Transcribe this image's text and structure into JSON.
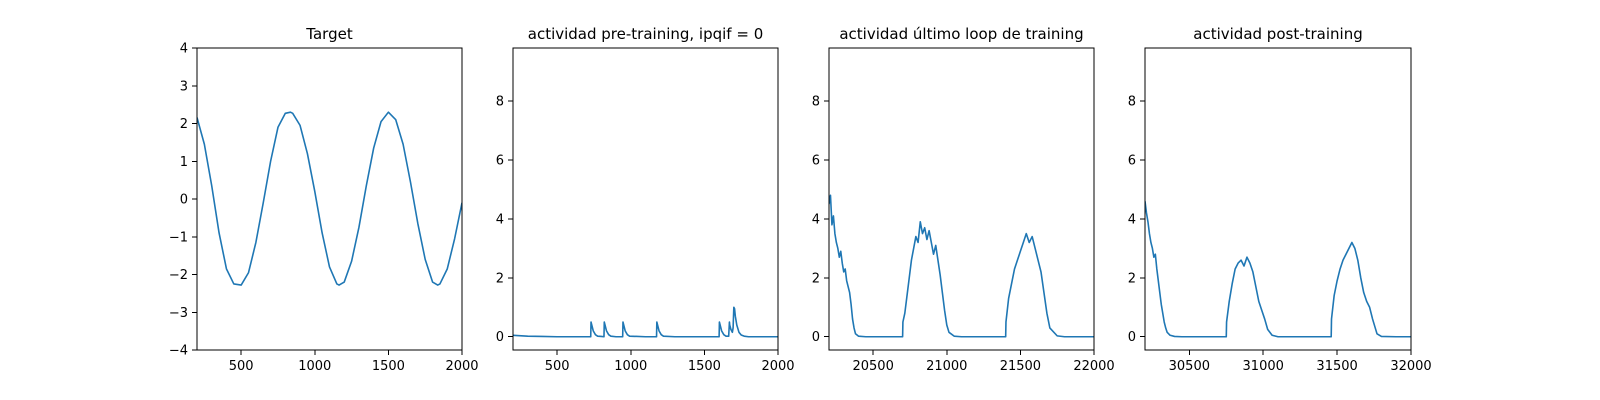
{
  "figure": {
    "line_color": "#1f77b4",
    "frame_color": "#000000",
    "background": "#ffffff"
  },
  "chart_data": [
    {
      "type": "line",
      "title": "Target",
      "xlabel": "",
      "ylabel": "",
      "xlim": [
        200,
        2000
      ],
      "ylim": [
        -4,
        4
      ],
      "xticks": [
        500,
        1000,
        1500,
        2000
      ],
      "yticks": [
        -4,
        -3,
        -2,
        -1,
        0,
        1,
        2,
        3,
        4
      ],
      "xtick_labels": [
        "500",
        "1000",
        "1500",
        "2000"
      ],
      "ytick_labels": [
        "−4",
        "−3",
        "−2",
        "−1",
        "0",
        "1",
        "2",
        "3",
        "4"
      ],
      "grid": false,
      "series": [
        {
          "x": [
            200,
            250,
            300,
            350,
            400,
            450,
            500,
            550,
            600,
            650,
            700,
            750,
            800,
            835,
            850,
            900,
            950,
            1000,
            1050,
            1100,
            1150,
            1165,
            1200,
            1250,
            1300,
            1350,
            1400,
            1450,
            1500,
            1550,
            1600,
            1650,
            1700,
            1750,
            1800,
            1835,
            1850,
            1900,
            1950,
            2000
          ],
          "values": [
            2.16,
            1.45,
            0.35,
            -0.9,
            -1.85,
            -2.25,
            -2.28,
            -1.95,
            -1.15,
            -0.1,
            1.0,
            1.9,
            2.27,
            2.3,
            2.27,
            1.95,
            1.2,
            0.2,
            -0.9,
            -1.8,
            -2.25,
            -2.28,
            -2.2,
            -1.65,
            -0.75,
            0.35,
            1.35,
            2.05,
            2.3,
            2.1,
            1.45,
            0.45,
            -0.65,
            -1.6,
            -2.2,
            -2.28,
            -2.25,
            -1.85,
            -1.05,
            -0.1
          ]
        }
      ]
    },
    {
      "type": "line",
      "title": "actividad pre-training, ipqif = 0",
      "xlabel": "",
      "ylabel": "",
      "xlim": [
        200,
        2000
      ],
      "ylim": [
        -0.45,
        9.8
      ],
      "xticks": [
        500,
        1000,
        1500,
        2000
      ],
      "yticks": [
        0,
        2,
        4,
        6,
        8
      ],
      "xtick_labels": [
        "500",
        "1000",
        "1500",
        "2000"
      ],
      "ytick_labels": [
        "0",
        "2",
        "4",
        "6",
        "8"
      ],
      "grid": false,
      "series": [
        {
          "x": [
            200,
            300,
            400,
            500,
            600,
            700,
            728,
            730,
            745,
            760,
            775,
            800,
            818,
            820,
            835,
            850,
            865,
            900,
            945,
            947,
            962,
            977,
            992,
            1100,
            1175,
            1177,
            1192,
            1207,
            1222,
            1300,
            1400,
            1500,
            1600,
            1602,
            1617,
            1632,
            1647,
            1665,
            1670,
            1672,
            1680,
            1690,
            1695,
            1700,
            1705,
            1710,
            1720,
            1735,
            1750,
            1770,
            1800,
            1900,
            2000
          ],
          "values": [
            0.05,
            0.02,
            0.01,
            0.0,
            0.0,
            0.0,
            0.0,
            0.5,
            0.2,
            0.07,
            0.02,
            0.01,
            0.0,
            0.5,
            0.2,
            0.07,
            0.02,
            0.0,
            0.0,
            0.5,
            0.2,
            0.07,
            0.02,
            0.0,
            0.0,
            0.5,
            0.2,
            0.07,
            0.02,
            0.0,
            0.0,
            0.0,
            0.0,
            0.5,
            0.2,
            0.07,
            0.02,
            0.02,
            0.5,
            0.4,
            0.25,
            0.15,
            0.3,
            1.0,
            0.95,
            0.7,
            0.4,
            0.15,
            0.06,
            0.02,
            0.0,
            0.0,
            0.0
          ]
        }
      ]
    },
    {
      "type": "line",
      "title": "actividad último loop de training",
      "xlabel": "",
      "ylabel": "",
      "xlim": [
        20200,
        22000
      ],
      "ylim": [
        -0.45,
        9.8
      ],
      "xticks": [
        20500,
        21000,
        21500,
        22000
      ],
      "yticks": [
        0,
        2,
        4,
        6,
        8
      ],
      "xtick_labels": [
        "20500",
        "21000",
        "21500",
        "22000"
      ],
      "ytick_labels": [
        "0",
        "2",
        "4",
        "6",
        "8"
      ],
      "grid": false,
      "series": [
        {
          "x": [
            20200,
            20210,
            20220,
            20230,
            20240,
            20250,
            20260,
            20270,
            20280,
            20290,
            20300,
            20310,
            20320,
            20330,
            20340,
            20350,
            20360,
            20370,
            20380,
            20400,
            20450,
            20500,
            20550,
            20600,
            20650,
            20700,
            20702,
            20715,
            20730,
            20745,
            20760,
            20775,
            20790,
            20805,
            20820,
            20835,
            20850,
            20865,
            20880,
            20895,
            20910,
            20925,
            20940,
            20955,
            20970,
            20985,
            21000,
            21015,
            21050,
            21100,
            21150,
            21200,
            21250,
            21300,
            21350,
            21400,
            21402,
            21420,
            21440,
            21460,
            21480,
            21500,
            21520,
            21540,
            21560,
            21580,
            21600,
            21620,
            21640,
            21660,
            21680,
            21700,
            21750,
            21800,
            21900,
            22000
          ],
          "values": [
            4.5,
            4.8,
            3.8,
            4.1,
            3.5,
            3.2,
            3.0,
            2.7,
            2.9,
            2.5,
            2.2,
            2.3,
            1.9,
            1.7,
            1.5,
            1.1,
            0.6,
            0.3,
            0.1,
            0.02,
            0.0,
            0.0,
            0.0,
            0.0,
            0.0,
            0.0,
            0.5,
            0.8,
            1.4,
            2.0,
            2.6,
            3.0,
            3.4,
            3.2,
            3.9,
            3.5,
            3.7,
            3.3,
            3.6,
            3.2,
            2.8,
            3.1,
            2.6,
            2.1,
            1.5,
            0.9,
            0.4,
            0.15,
            0.02,
            0.0,
            0.0,
            0.0,
            0.0,
            0.0,
            0.0,
            0.0,
            0.5,
            1.3,
            1.8,
            2.3,
            2.6,
            2.9,
            3.2,
            3.5,
            3.2,
            3.4,
            3.0,
            2.6,
            2.2,
            1.5,
            0.8,
            0.3,
            0.03,
            0.0,
            0.0,
            0.0
          ]
        }
      ]
    },
    {
      "type": "line",
      "title": "actividad post-training",
      "xlabel": "",
      "ylabel": "",
      "xlim": [
        30200,
        32000
      ],
      "ylim": [
        -0.45,
        9.8
      ],
      "xticks": [
        30500,
        31000,
        31500,
        32000
      ],
      "yticks": [
        0,
        2,
        4,
        6,
        8
      ],
      "xtick_labels": [
        "30500",
        "31000",
        "31500",
        "32000"
      ],
      "ytick_labels": [
        "0",
        "2",
        "4",
        "6",
        "8"
      ],
      "grid": false,
      "series": [
        {
          "x": [
            30200,
            30210,
            30220,
            30230,
            30240,
            30250,
            30260,
            30270,
            30280,
            30290,
            30300,
            30310,
            30320,
            30330,
            30340,
            30350,
            30370,
            30400,
            30450,
            30500,
            30600,
            30700,
            30750,
            30752,
            30770,
            30790,
            30810,
            30830,
            30850,
            30870,
            30890,
            30910,
            30930,
            30950,
            30970,
            30990,
            31010,
            31030,
            31060,
            31100,
            31200,
            31300,
            31400,
            31460,
            31462,
            31480,
            31500,
            31520,
            31540,
            31560,
            31580,
            31600,
            31620,
            31640,
            31660,
            31680,
            31700,
            31720,
            31740,
            31770,
            31800,
            31900,
            32000
          ],
          "values": [
            4.6,
            4.2,
            3.9,
            3.5,
            3.2,
            3.0,
            2.7,
            2.8,
            2.3,
            1.9,
            1.5,
            1.1,
            0.8,
            0.5,
            0.3,
            0.15,
            0.05,
            0.01,
            0.0,
            0.0,
            0.0,
            0.0,
            0.0,
            0.5,
            1.2,
            1.8,
            2.3,
            2.5,
            2.6,
            2.4,
            2.7,
            2.5,
            2.2,
            1.7,
            1.2,
            0.9,
            0.6,
            0.25,
            0.05,
            0.0,
            0.0,
            0.0,
            0.0,
            0.0,
            0.6,
            1.4,
            1.9,
            2.3,
            2.6,
            2.8,
            3.0,
            3.2,
            3.0,
            2.6,
            2.0,
            1.5,
            1.2,
            1.0,
            0.6,
            0.1,
            0.01,
            0.0,
            0.0
          ]
        }
      ]
    }
  ]
}
